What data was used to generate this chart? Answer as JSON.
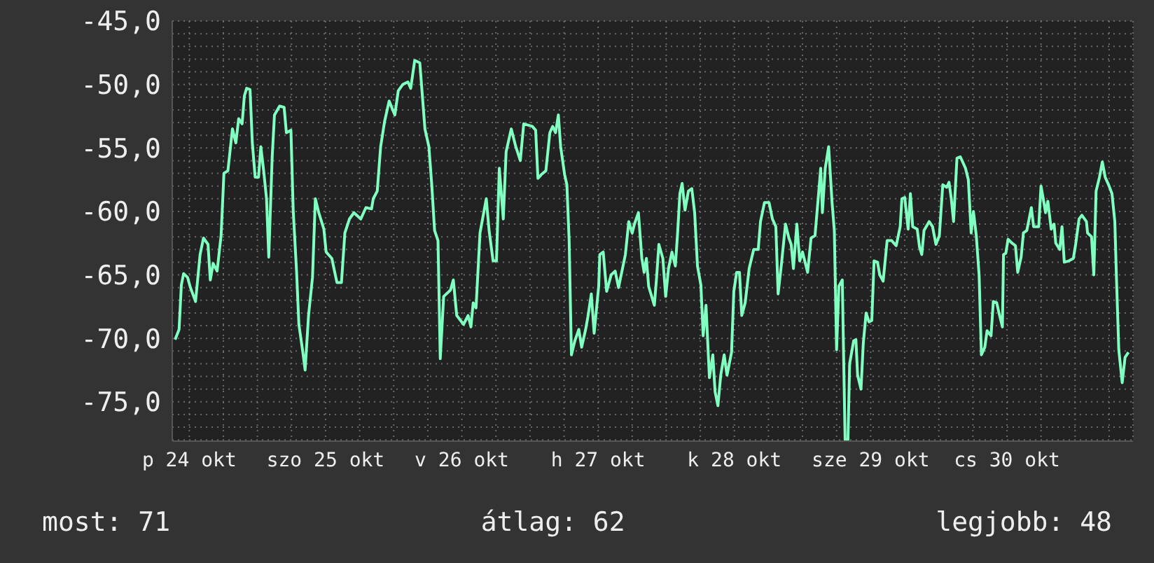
{
  "chart_data": {
    "type": "line",
    "annotations": [
      "most: 71",
      "átlag: 62",
      "legjobb: 48"
    ],
    "xlim": [
      "--10-24T09:00",
      "--10-31T10:12"
    ],
    "xticks": [
      {
        "value": "--10-24T12:00",
        "label": "p 24 okt"
      },
      {
        "value": "--10-24T18:00",
        "label": null
      },
      {
        "value": "--10-25T00:00",
        "label": null
      },
      {
        "value": "--10-25T06:00",
        "label": null
      },
      {
        "value": "--10-25T12:00",
        "label": "szo 25 okt"
      },
      {
        "value": "--10-25T18:00",
        "label": null
      },
      {
        "value": "--10-26T00:00",
        "label": null
      },
      {
        "value": "--10-26T06:00",
        "label": null
      },
      {
        "value": "--10-26T12:00",
        "label": "v 26 okt"
      },
      {
        "value": "--10-26T18:00",
        "label": null
      },
      {
        "value": "--10-27T00:00",
        "label": null
      },
      {
        "value": "--10-27T06:00",
        "label": null
      },
      {
        "value": "--10-27T12:00",
        "label": "h 27 okt"
      },
      {
        "value": "--10-27T18:00",
        "label": null
      },
      {
        "value": "--10-28T00:00",
        "label": null
      },
      {
        "value": "--10-28T06:00",
        "label": null
      },
      {
        "value": "--10-28T12:00",
        "label": "k 28 okt"
      },
      {
        "value": "--10-28T18:00",
        "label": null
      },
      {
        "value": "--10-29T00:00",
        "label": null
      },
      {
        "value": "--10-29T06:00",
        "label": null
      },
      {
        "value": "--10-29T12:00",
        "label": "sze 29 okt"
      },
      {
        "value": "--10-29T18:00",
        "label": null
      },
      {
        "value": "--10-30T00:00",
        "label": null
      },
      {
        "value": "--10-30T06:00",
        "label": null
      },
      {
        "value": "--10-30T12:00",
        "label": "cs 30 okt"
      },
      {
        "value": "--10-30T18:00",
        "label": null
      },
      {
        "value": "--10-31T00:00",
        "label": null
      },
      {
        "value": "--10-31T06:00",
        "label": null
      }
    ],
    "ylim": [
      -78.1,
      -45
    ],
    "yticks": [
      {
        "value": -45,
        "label": "-45,0"
      },
      {
        "value": -46,
        "label": null
      },
      {
        "value": -47,
        "label": null
      },
      {
        "value": -48,
        "label": null
      },
      {
        "value": -49,
        "label": null
      },
      {
        "value": -50,
        "label": "-50,0"
      },
      {
        "value": -51,
        "label": null
      },
      {
        "value": -52,
        "label": null
      },
      {
        "value": -53,
        "label": null
      },
      {
        "value": -54,
        "label": null
      },
      {
        "value": -55,
        "label": "-55,0"
      },
      {
        "value": -56,
        "label": null
      },
      {
        "value": -57,
        "label": null
      },
      {
        "value": -58,
        "label": null
      },
      {
        "value": -59,
        "label": null
      },
      {
        "value": -60,
        "label": "-60,0"
      },
      {
        "value": -61,
        "label": null
      },
      {
        "value": -62,
        "label": null
      },
      {
        "value": -63,
        "label": null
      },
      {
        "value": -64,
        "label": null
      },
      {
        "value": -65,
        "label": "-65,0"
      },
      {
        "value": -66,
        "label": null
      },
      {
        "value": -67,
        "label": null
      },
      {
        "value": -68,
        "label": null
      },
      {
        "value": -69,
        "label": null
      },
      {
        "value": -70,
        "label": "-70,0"
      },
      {
        "value": -71,
        "label": null
      },
      {
        "value": -72,
        "label": null
      },
      {
        "value": -73,
        "label": null
      },
      {
        "value": -74,
        "label": null
      },
      {
        "value": -75,
        "label": "-75,0"
      },
      {
        "value": -76,
        "label": null
      },
      {
        "value": -77,
        "label": null
      },
      {
        "value": -78,
        "label": null
      }
    ],
    "grid": true,
    "series": [
      {
        "color": "#80ffc0",
        "x": [
          "--10-24T09:30",
          "--10-24T10:12",
          "--10-24T10:36",
          "--10-24T11:00",
          "--10-24T11:42",
          "--10-24T12:12",
          "--10-24T13:06",
          "--10-24T13:54",
          "--10-24T14:30",
          "--10-24T15:18",
          "--10-24T15:42",
          "--10-24T16:12",
          "--10-24T16:54",
          "--10-24T17:36",
          "--10-24T18:06",
          "--10-24T18:48",
          "--10-24T19:36",
          "--10-24T20:12",
          "--10-24T20:42",
          "--10-24T21:18",
          "--10-24T21:42",
          "--10-24T22:06",
          "--10-24T22:42",
          "--10-24T23:06",
          "--10-24T23:36",
          "--10-25T00:12",
          "--10-25T00:36",
          "--10-25T01:06",
          "--10-25T01:36",
          "--10-25T02:00",
          "--10-25T02:36",
          "--10-25T03:00",
          "--10-25T03:54",
          "--10-25T04:42",
          "--10-25T05:06",
          "--10-25T05:54",
          "--10-25T06:18",
          "--10-25T06:54",
          "--10-25T07:18",
          "--10-25T08:00",
          "--10-25T08:24",
          "--10-25T09:00",
          "--10-25T09:42",
          "--10-25T10:12",
          "--10-25T10:48",
          "--10-25T11:42",
          "--10-25T12:06",
          "--10-25T13:06",
          "--10-25T14:00",
          "--10-25T14:48",
          "--10-25T15:24",
          "--10-25T16:12",
          "--10-25T17:00",
          "--10-25T18:12",
          "--10-25T19:06",
          "--10-25T20:06",
          "--10-25T20:24",
          "--10-25T21:06",
          "--10-25T21:42",
          "--10-25T22:24",
          "--10-25T23:12",
          "--10-26T00:12",
          "--10-26T00:48",
          "--10-26T01:36",
          "--10-26T02:30",
          "--10-26T03:00",
          "--10-26T03:42",
          "--10-26T04:36",
          "--10-26T05:30",
          "--10-26T06:12",
          "--10-26T06:42",
          "--10-26T07:12",
          "--10-26T07:48",
          "--10-26T08:12",
          "--10-26T08:48",
          "--10-26T10:00",
          "--10-26T10:30",
          "--10-26T11:06",
          "--10-26T12:18",
          "--10-26T13:06",
          "--10-26T13:36",
          "--10-26T14:00",
          "--10-26T14:30",
          "--10-26T15:12",
          "--10-26T16:18",
          "--10-26T16:48",
          "--10-26T17:30",
          "--10-26T18:06",
          "--10-26T18:36",
          "--10-26T19:18",
          "--10-26T19:48",
          "--10-26T20:42",
          "--10-26T21:30",
          "--10-26T22:18",
          "--10-26T22:54",
          "--10-27T00:24",
          "--10-27T01:00",
          "--10-27T01:24",
          "--10-27T02:00",
          "--10-27T02:48",
          "--10-27T03:30",
          "--10-27T04:00",
          "--10-27T04:30",
          "--10-27T05:00",
          "--10-27T05:24",
          "--10-27T06:06",
          "--10-27T06:30",
          "--10-27T06:54",
          "--10-27T07:18",
          "--10-27T07:54",
          "--10-27T08:36",
          "--10-27T09:06",
          "--10-27T09:48",
          "--10-27T10:12",
          "--10-27T10:48",
          "--10-27T11:18",
          "--10-27T12:06",
          "--10-27T12:18",
          "--10-27T12:54",
          "--10-27T13:30",
          "--10-27T14:18",
          "--10-27T15:00",
          "--10-27T15:36",
          "--10-27T16:48",
          "--10-27T17:24",
          "--10-27T18:00",
          "--10-27T18:24",
          "--10-27T19:06",
          "--10-27T19:42",
          "--10-27T20:06",
          "--10-27T20:30",
          "--10-27T20:54",
          "--10-27T21:54",
          "--10-27T22:18",
          "--10-27T22:42",
          "--10-27T23:24",
          "--10-27T23:54",
          "--10-28T00:24",
          "--10-28T01:00",
          "--10-28T01:36",
          "--10-28T02:00",
          "--10-28T02:24",
          "--10-28T02:48",
          "--10-28T03:18",
          "--10-28T03:54",
          "--10-28T04:30",
          "--10-28T05:00",
          "--10-28T05:30",
          "--10-28T06:06",
          "--10-28T06:30",
          "--10-28T07:00",
          "--10-28T07:36",
          "--10-28T08:12",
          "--10-28T08:36",
          "--10-28T09:06",
          "--10-28T09:36",
          "--10-28T10:12",
          "--10-28T10:42",
          "--10-28T11:30",
          "--10-28T11:54",
          "--10-28T12:24",
          "--10-28T12:54",
          "--10-28T13:18",
          "--10-28T13:54",
          "--10-28T14:36",
          "--10-28T15:24",
          "--10-28T16:12",
          "--10-28T16:36",
          "--10-28T17:18",
          "--10-28T18:06",
          "--10-28T18:42",
          "--10-28T19:18",
          "--10-28T19:42",
          "--10-28T20:18",
          "--10-28T21:00",
          "--10-28T21:36",
          "--10-28T22:00",
          "--10-28T22:24",
          "--10-28T23:00",
          "--10-28T23:30",
          "--10-29T00:00",
          "--10-29T00:54",
          "--10-29T01:30",
          "--10-29T02:12",
          "--10-29T02:42",
          "--10-29T03:12",
          "--10-29T03:30",
          "--10-29T04:00",
          "--10-29T04:36",
          "--10-29T05:12",
          "--10-29T05:36",
          "--10-29T06:00",
          "--10-29T06:24",
          "--10-29T07:00",
          "--10-29T07:30",
          "--10-29T08:00",
          "--10-29T08:18",
          "--10-29T09:00",
          "--10-29T09:24",
          "--10-29T09:42",
          "--10-29T10:18",
          "--10-29T10:42",
          "--10-29T11:12",
          "--10-29T11:42",
          "--10-29T12:12",
          "--10-29T12:36",
          "--10-29T13:12",
          "--10-29T13:36",
          "--10-29T14:12",
          "--10-29T14:54",
          "--10-29T15:42",
          "--10-29T16:30",
          "--10-29T17:12",
          "--10-29T17:30",
          "--10-29T18:00",
          "--10-29T18:36",
          "--10-29T19:00",
          "--10-29T19:24",
          "--10-29T20:12",
          "--10-29T20:36",
          "--10-29T21:00",
          "--10-29T21:24",
          "--10-29T22:18",
          "--10-29T22:54",
          "--10-29T23:30",
          "--10-30T00:06",
          "--10-30T00:42",
          "--10-30T01:24",
          "--10-30T01:48",
          "--10-30T02:12",
          "--10-30T02:36",
          "--10-30T03:12",
          "--10-30T03:48",
          "--10-30T04:42",
          "--10-30T05:12",
          "--10-30T05:42",
          "--10-30T06:06",
          "--10-30T06:36",
          "--10-30T07:06",
          "--10-30T07:30",
          "--10-30T08:06",
          "--10-30T08:30",
          "--10-30T09:12",
          "--10-30T09:36",
          "--10-30T10:12",
          "--10-30T10:36",
          "--10-30T11:12",
          "--10-30T11:24",
          "--10-30T11:48",
          "--10-30T12:12",
          "--10-30T12:54",
          "--10-30T13:30",
          "--10-30T13:54",
          "--10-30T14:30",
          "--10-30T14:54",
          "--10-30T15:30",
          "--10-30T15:54",
          "--10-30T16:18",
          "--10-30T16:42",
          "--10-30T17:36",
          "--10-30T18:00",
          "--10-30T18:24",
          "--10-30T18:48",
          "--10-30T19:12",
          "--10-30T19:48",
          "--10-30T20:18",
          "--10-30T20:36",
          "--10-30T21:18",
          "--10-30T21:42",
          "--10-30T22:06",
          "--10-30T22:54",
          "--10-30T23:42",
          "--10-31T00:06",
          "--10-31T00:42",
          "--10-31T01:12",
          "--10-31T02:00",
          "--10-31T02:12",
          "--10-31T02:54",
          "--10-31T03:18",
          "--10-31T03:42",
          "--10-31T04:18",
          "--10-31T04:48",
          "--10-31T05:18",
          "--10-31T05:54",
          "--10-31T06:30",
          "--10-31T07:00",
          "--10-31T07:18",
          "--10-31T07:42",
          "--10-31T08:18",
          "--10-31T08:48",
          "--10-31T09:24"
        ],
        "values": [
          -70.1,
          -69.3,
          -65.8,
          -64.9,
          -65.2,
          -66.0,
          -67.1,
          -63.4,
          -62.1,
          -62.6,
          -65.4,
          -64.1,
          -64.7,
          -61.9,
          -57.0,
          -56.8,
          -53.5,
          -54.6,
          -52.7,
          -53.1,
          -50.9,
          -50.3,
          -50.4,
          -54.6,
          -57.3,
          -57.3,
          -54.9,
          -56.8,
          -59.0,
          -63.6,
          -55.7,
          -52.4,
          -51.7,
          -51.8,
          -53.8,
          -53.6,
          -59.9,
          -64.8,
          -68.9,
          -71.1,
          -72.5,
          -68.2,
          -65.2,
          -59.0,
          -60.1,
          -61.4,
          -63.2,
          -63.7,
          -65.6,
          -65.6,
          -61.7,
          -60.6,
          -60.1,
          -60.6,
          -59.7,
          -59.8,
          -59.0,
          -58.4,
          -54.9,
          -52.9,
          -51.3,
          -52.4,
          -50.5,
          -50.0,
          -49.8,
          -50.3,
          -48.1,
          -48.3,
          -53.5,
          -54.9,
          -57.9,
          -61.5,
          -62.3,
          -71.6,
          -66.7,
          -66.2,
          -65.4,
          -68.2,
          -68.9,
          -68.2,
          -69.1,
          -67.2,
          -67.6,
          -61.7,
          -59.0,
          -61.5,
          -63.9,
          -63.9,
          -56.6,
          -60.6,
          -55.3,
          -53.5,
          -54.9,
          -56.0,
          -53.1,
          -53.3,
          -53.6,
          -57.4,
          -57.1,
          -56.8,
          -53.8,
          -53.3,
          -53.8,
          -52.4,
          -54.9,
          -57.1,
          -57.9,
          -62.3,
          -71.3,
          -70.2,
          -69.3,
          -70.7,
          -69.3,
          -68.3,
          -66.5,
          -69.6,
          -65.9,
          -63.4,
          -63.2,
          -66.3,
          -65.0,
          -64.7,
          -66.0,
          -63.4,
          -60.8,
          -61.7,
          -61.0,
          -60.1,
          -63.7,
          -64.8,
          -63.7,
          -65.9,
          -67.4,
          -65.2,
          -62.6,
          -63.7,
          -66.7,
          -64.5,
          -63.2,
          -64.3,
          -61.7,
          -58.6,
          -57.8,
          -59.9,
          -58.4,
          -58.2,
          -60.1,
          -64.3,
          -65.8,
          -69.8,
          -67.4,
          -73.1,
          -71.3,
          -74.2,
          -75.3,
          -72.9,
          -71.3,
          -72.9,
          -71.1,
          -66.3,
          -64.8,
          -64.8,
          -68.2,
          -67.2,
          -64.5,
          -63.0,
          -63.0,
          -60.8,
          -59.3,
          -59.3,
          -60.6,
          -61.2,
          -66.5,
          -64.1,
          -61.0,
          -62.1,
          -62.6,
          -64.5,
          -61.0,
          -63.9,
          -63.2,
          -64.8,
          -62.1,
          -61.9,
          -59.3,
          -56.6,
          -60.1,
          -56.6,
          -54.9,
          -59.3,
          -61.5,
          -70.9,
          -65.9,
          -65.4,
          -78.0,
          -78.0,
          -72.0,
          -70.2,
          -70.1,
          -72.9,
          -74.0,
          -70.4,
          -68.0,
          -68.7,
          -68.6,
          -63.9,
          -64.0,
          -65.0,
          -65.5,
          -62.3,
          -62.3,
          -62.7,
          -61.2,
          -59.0,
          -58.9,
          -61.4,
          -58.6,
          -61.2,
          -61.4,
          -62.8,
          -63.4,
          -61.5,
          -60.8,
          -61.2,
          -62.6,
          -61.9,
          -57.9,
          -58.1,
          -57.7,
          -59.0,
          -60.8,
          -55.8,
          -55.7,
          -56.6,
          -57.5,
          -61.7,
          -60.0,
          -61.9,
          -65.0,
          -71.3,
          -70.7,
          -69.4,
          -69.8,
          -67.1,
          -67.2,
          -68.0,
          -69.1,
          -63.4,
          -63.3,
          -62.2,
          -62.5,
          -62.7,
          -64.8,
          -63.6,
          -61.7,
          -61.5,
          -60.6,
          -59.7,
          -61.2,
          -61.2,
          -58.0,
          -59.0,
          -60.1,
          -59.2,
          -61.4,
          -61.0,
          -62.5,
          -63.0,
          -61.2,
          -64.0,
          -63.9,
          -63.7,
          -62.6,
          -60.6,
          -60.3,
          -60.8,
          -61.7,
          -62.0,
          -65.0,
          -58.4,
          -57.3,
          -56.1,
          -57.3,
          -57.9,
          -58.6,
          -60.8,
          -65.4,
          -70.9,
          -73.5,
          -71.5,
          -71.1
        ]
      }
    ]
  }
}
